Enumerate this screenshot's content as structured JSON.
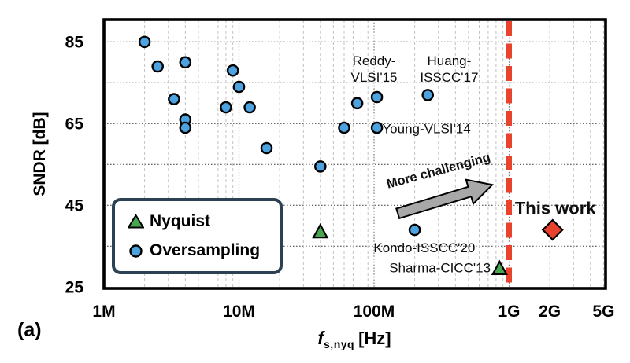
{
  "figure": {
    "panel_label": "(a)",
    "x_axis_title": {
      "var": "f",
      "sub": "s,nyq",
      "unit": "[Hz]"
    }
  },
  "chart_data": {
    "type": "scatter",
    "x_scale": "log",
    "xlabel": "f_s,nyq [Hz]",
    "ylabel": "SNDR [dB]",
    "xlim": [
      1000000,
      5600000000
    ],
    "ylim": [
      25,
      90.5
    ],
    "grid": {
      "h_dB": [
        35,
        45,
        55,
        65,
        75,
        85
      ],
      "v_decades_major": [
        10000000,
        100000000,
        1000000000
      ],
      "v_minor": true
    },
    "x_ticks": [
      {
        "f": 1000000,
        "label": "1M"
      },
      {
        "f": 10000000,
        "label": "10M"
      },
      {
        "f": 100000000,
        "label": "100M"
      },
      {
        "f": 1000000000,
        "label": "1G"
      },
      {
        "f": 2000000000,
        "label": "2G"
      },
      {
        "f": 5000000000,
        "label": "5G"
      }
    ],
    "y_ticks": [
      {
        "dB": 85,
        "label": "85"
      },
      {
        "dB": 65,
        "label": "65"
      },
      {
        "dB": 45,
        "label": "45"
      },
      {
        "dB": 25,
        "label": "25"
      }
    ],
    "series": [
      {
        "name": "Oversampling",
        "marker": "circle",
        "color": "#4da2e0",
        "points": [
          {
            "f": 2000000,
            "sndr": 85
          },
          {
            "f": 2500000,
            "sndr": 79
          },
          {
            "f": 4000000,
            "sndr": 80
          },
          {
            "f": 3300000,
            "sndr": 71
          },
          {
            "f": 4000000,
            "sndr": 66
          },
          {
            "f": 4000000,
            "sndr": 64
          },
          {
            "f": 8000000,
            "sndr": 69
          },
          {
            "f": 9000000,
            "sndr": 78
          },
          {
            "f": 10000000,
            "sndr": 74
          },
          {
            "f": 12000000,
            "sndr": 69
          },
          {
            "f": 16000000,
            "sndr": 59
          },
          {
            "f": 40000000,
            "sndr": 54.5
          },
          {
            "f": 60000000,
            "sndr": 64
          },
          {
            "f": 75000000,
            "sndr": 70
          },
          {
            "f": 105000000,
            "sndr": 71.5
          },
          {
            "f": 105000000,
            "sndr": 64
          },
          {
            "f": 250000000,
            "sndr": 72
          },
          {
            "f": 200000000,
            "sndr": 39
          }
        ]
      },
      {
        "name": "Nyquist",
        "marker": "triangle",
        "color": "#4aa551",
        "points": [
          {
            "f": 40000000,
            "sndr": 38.5
          },
          {
            "f": 850000000,
            "sndr": 29.5
          }
        ]
      },
      {
        "name": "This work",
        "marker": "diamond",
        "color": "#e8422d",
        "points": [
          {
            "f": 2100000000,
            "sndr": 39
          }
        ]
      }
    ],
    "annotations": [
      {
        "text": [
          "Reddy-",
          "VLSI'15"
        ],
        "f": 100000000,
        "sndr": 78.5,
        "ha": "center",
        "style": "plain"
      },
      {
        "text": [
          "Huang-",
          "ISSCC'17"
        ],
        "f": 360000000,
        "sndr": 78.5,
        "ha": "center",
        "style": "plain"
      },
      {
        "text": [
          "Young-VLSI'14"
        ],
        "f": 115000000,
        "sndr": 63.8,
        "ha": "left",
        "style": "plain"
      },
      {
        "text": [
          "Kondo-ISSCC'20"
        ],
        "f": 560000000,
        "sndr": 34.7,
        "ha": "right",
        "style": "plain"
      },
      {
        "text": [
          "Sharma-CICC'13"
        ],
        "f": 730000000,
        "sndr": 29.8,
        "ha": "right",
        "style": "plain"
      },
      {
        "text": [
          "This work"
        ],
        "f": 2200000000,
        "sndr": 44,
        "ha": "center",
        "style": "bold"
      }
    ],
    "limit_line": {
      "f": 1000000000,
      "color": "#e8432c"
    },
    "arrow": {
      "label": "More challenging",
      "color": "#a8a8a8",
      "from": {
        "f": 150000000,
        "sndr": 43
      },
      "to": {
        "f": 750000000,
        "sndr": 50
      },
      "label_at": {
        "f": 305000000,
        "sndr": 52.5
      },
      "label_rotation_deg": -15
    },
    "legend": {
      "position": "bottom-left",
      "items": [
        {
          "marker": "triangle",
          "label": "Nyquist"
        },
        {
          "marker": "circle",
          "label": "Oversampling"
        }
      ]
    }
  }
}
